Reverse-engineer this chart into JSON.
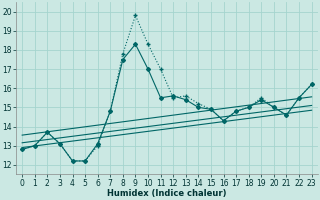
{
  "xlabel": "Humidex (Indice chaleur)",
  "bg_color": "#cbe8e3",
  "grid_color": "#a5d4ce",
  "line_color": "#006666",
  "xlim": [
    -0.5,
    23.5
  ],
  "ylim": [
    11.5,
    20.5
  ],
  "xticks": [
    0,
    1,
    2,
    3,
    4,
    5,
    6,
    7,
    8,
    9,
    10,
    11,
    12,
    13,
    14,
    15,
    16,
    17,
    18,
    19,
    20,
    21,
    22,
    23
  ],
  "yticks": [
    12,
    13,
    14,
    15,
    16,
    17,
    18,
    19,
    20
  ],
  "curve1_x": [
    0,
    1,
    2,
    3,
    4,
    5,
    6,
    7,
    8,
    9,
    10,
    11,
    12,
    13,
    14,
    15,
    16,
    17,
    18,
    19,
    20,
    21,
    22,
    23
  ],
  "curve1_y": [
    12.8,
    13.0,
    13.7,
    13.1,
    12.2,
    12.2,
    13.0,
    14.8,
    17.8,
    19.8,
    18.3,
    17.0,
    15.5,
    15.6,
    15.2,
    14.9,
    14.3,
    14.8,
    15.0,
    15.5,
    15.0,
    14.6,
    15.5,
    16.2
  ],
  "curve2_x": [
    0,
    1,
    2,
    3,
    4,
    5,
    6,
    7,
    8,
    9,
    10,
    11,
    12,
    13,
    14,
    15,
    16,
    17,
    18,
    19,
    20,
    21,
    22,
    23
  ],
  "curve2_y": [
    12.8,
    13.0,
    13.7,
    13.1,
    12.2,
    12.2,
    13.1,
    14.8,
    17.5,
    18.3,
    17.0,
    15.5,
    15.6,
    15.4,
    15.0,
    14.9,
    14.3,
    14.8,
    15.0,
    15.4,
    15.0,
    14.6,
    15.5,
    16.2
  ],
  "trend_lines": [
    [
      12.9,
      14.85
    ],
    [
      13.15,
      15.1
    ],
    [
      13.55,
      15.55
    ]
  ]
}
